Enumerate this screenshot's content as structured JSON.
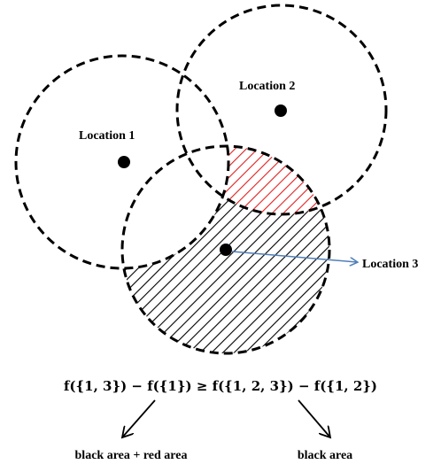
{
  "locations": [
    {
      "label": "Location 1"
    },
    {
      "label": "Location 2"
    },
    {
      "label": "Location 3"
    }
  ],
  "formula": "f({1, 3}) − f({1}) ≥ f({1, 2, 3}) − f({1, 2})",
  "bottom_labels": {
    "left": "black area + red area",
    "right": "black area"
  },
  "colors": {
    "circle_stroke": "#000000",
    "red_hatch": "#e02020",
    "black_hatch": "#000000",
    "pointer_arrow": "#4f7fb8"
  }
}
